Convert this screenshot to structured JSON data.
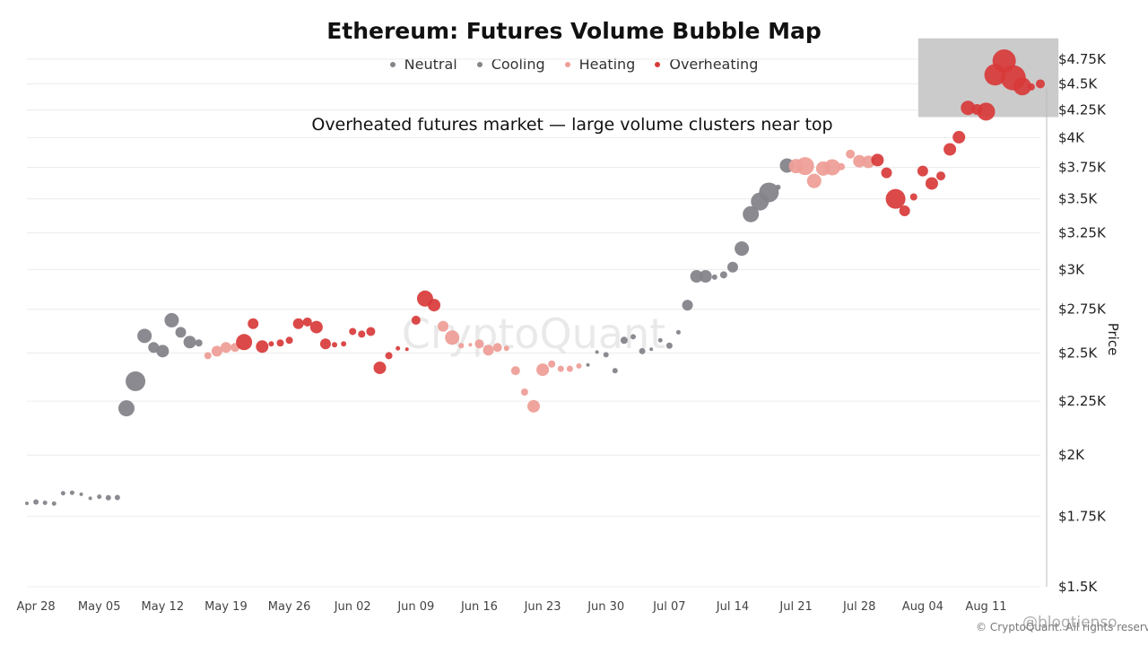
{
  "chart_data": {
    "type": "scatter",
    "title": "Ethereum: Futures Volume Bubble Map",
    "annotation": "Overheated futures market — large volume clusters near top",
    "ylabel": "Price",
    "y_scale": "log",
    "ylim": [
      1500,
      4900
    ],
    "y_ticks": [
      {
        "value": 1500,
        "label": "$1.5K"
      },
      {
        "value": 1750,
        "label": "$1.75K"
      },
      {
        "value": 2000,
        "label": "$2K"
      },
      {
        "value": 2250,
        "label": "$2.25K"
      },
      {
        "value": 2500,
        "label": "$2.5K"
      },
      {
        "value": 2750,
        "label": "$2.75K"
      },
      {
        "value": 3000,
        "label": "$3K"
      },
      {
        "value": 3250,
        "label": "$3.25K"
      },
      {
        "value": 3500,
        "label": "$3.5K"
      },
      {
        "value": 3750,
        "label": "$3.75K"
      },
      {
        "value": 4000,
        "label": "$4K"
      },
      {
        "value": 4250,
        "label": "$4.25K"
      },
      {
        "value": 4500,
        "label": "$4.5K"
      },
      {
        "value": 4750,
        "label": "$4.75K"
      }
    ],
    "xlim": [
      "2025-04-27",
      "2025-08-17"
    ],
    "x_ticks": [
      {
        "value": "2025-04-28",
        "label": "Apr 28"
      },
      {
        "value": "2025-05-05",
        "label": "May 05"
      },
      {
        "value": "2025-05-12",
        "label": "May 12"
      },
      {
        "value": "2025-05-19",
        "label": "May 19"
      },
      {
        "value": "2025-05-26",
        "label": "May 26"
      },
      {
        "value": "2025-06-02",
        "label": "Jun 02"
      },
      {
        "value": "2025-06-09",
        "label": "Jun 09"
      },
      {
        "value": "2025-06-16",
        "label": "Jun 16"
      },
      {
        "value": "2025-06-23",
        "label": "Jun 23"
      },
      {
        "value": "2025-06-30",
        "label": "Jun 30"
      },
      {
        "value": "2025-07-07",
        "label": "Jul 07"
      },
      {
        "value": "2025-07-14",
        "label": "Jul 14"
      },
      {
        "value": "2025-07-21",
        "label": "Jul 21"
      },
      {
        "value": "2025-07-28",
        "label": "Jul 28"
      },
      {
        "value": "2025-08-04",
        "label": "Aug 04"
      },
      {
        "value": "2025-08-11",
        "label": "Aug 11"
      }
    ],
    "grid": true,
    "legend_position": "top-center",
    "legend": [
      {
        "label": "Neutral",
        "color": "#86848b"
      },
      {
        "label": "Cooling",
        "color": "#86848b"
      },
      {
        "label": "Heating",
        "color": "#ee9f98"
      },
      {
        "label": "Overheating",
        "color": "#d83a3a"
      }
    ],
    "category_colors": {
      "N": "#86848b",
      "C": "#86848b",
      "H": "#ee9f98",
      "O": "#d83a3a"
    },
    "highlight_region": {
      "x": [
        "2025-08-04",
        "2025-08-19"
      ],
      "y": [
        4185,
        4970
      ]
    },
    "points": [
      {
        "date": "2025-04-27",
        "price": 1800,
        "cat": "N",
        "size": 2
      },
      {
        "date": "2025-04-28",
        "price": 1805,
        "cat": "N",
        "size": 3
      },
      {
        "date": "2025-04-29",
        "price": 1802,
        "cat": "N",
        "size": 2.5
      },
      {
        "date": "2025-04-30",
        "price": 1799,
        "cat": "N",
        "size": 2.5
      },
      {
        "date": "2025-05-01",
        "price": 1840,
        "cat": "N",
        "size": 2.5
      },
      {
        "date": "2025-05-02",
        "price": 1842,
        "cat": "N",
        "size": 2.5
      },
      {
        "date": "2025-05-03",
        "price": 1836,
        "cat": "N",
        "size": 2
      },
      {
        "date": "2025-05-04",
        "price": 1820,
        "cat": "N",
        "size": 2
      },
      {
        "date": "2025-05-05",
        "price": 1826,
        "cat": "N",
        "size": 2.5
      },
      {
        "date": "2025-05-06",
        "price": 1822,
        "cat": "N",
        "size": 3
      },
      {
        "date": "2025-05-07",
        "price": 1823,
        "cat": "N",
        "size": 3
      },
      {
        "date": "2025-05-08",
        "price": 2215,
        "cat": "C",
        "size": 9
      },
      {
        "date": "2025-05-09",
        "price": 2350,
        "cat": "C",
        "size": 11
      },
      {
        "date": "2025-05-10",
        "price": 2595,
        "cat": "C",
        "size": 8
      },
      {
        "date": "2025-05-11",
        "price": 2530,
        "cat": "C",
        "size": 6
      },
      {
        "date": "2025-05-12",
        "price": 2510,
        "cat": "C",
        "size": 7
      },
      {
        "date": "2025-05-13",
        "price": 2685,
        "cat": "C",
        "size": 8
      },
      {
        "date": "2025-05-14",
        "price": 2615,
        "cat": "C",
        "size": 6
      },
      {
        "date": "2025-05-15",
        "price": 2560,
        "cat": "C",
        "size": 7
      },
      {
        "date": "2025-05-16",
        "price": 2555,
        "cat": "C",
        "size": 4
      },
      {
        "date": "2025-05-17",
        "price": 2485,
        "cat": "H",
        "size": 4
      },
      {
        "date": "2025-05-18",
        "price": 2510,
        "cat": "H",
        "size": 6
      },
      {
        "date": "2025-05-19",
        "price": 2530,
        "cat": "H",
        "size": 6
      },
      {
        "date": "2025-05-20",
        "price": 2530,
        "cat": "H",
        "size": 5
      },
      {
        "date": "2025-05-21",
        "price": 2560,
        "cat": "O",
        "size": 9
      },
      {
        "date": "2025-05-22",
        "price": 2665,
        "cat": "O",
        "size": 6
      },
      {
        "date": "2025-05-23",
        "price": 2535,
        "cat": "O",
        "size": 7
      },
      {
        "date": "2025-05-24",
        "price": 2550,
        "cat": "O",
        "size": 3
      },
      {
        "date": "2025-05-25",
        "price": 2555,
        "cat": "O",
        "size": 4
      },
      {
        "date": "2025-05-26",
        "price": 2570,
        "cat": "O",
        "size": 4
      },
      {
        "date": "2025-05-27",
        "price": 2665,
        "cat": "O",
        "size": 6
      },
      {
        "date": "2025-05-28",
        "price": 2675,
        "cat": "O",
        "size": 5
      },
      {
        "date": "2025-05-29",
        "price": 2645,
        "cat": "O",
        "size": 7
      },
      {
        "date": "2025-05-30",
        "price": 2550,
        "cat": "O",
        "size": 6
      },
      {
        "date": "2025-05-31",
        "price": 2545,
        "cat": "O",
        "size": 3
      },
      {
        "date": "2025-06-01",
        "price": 2550,
        "cat": "O",
        "size": 3
      },
      {
        "date": "2025-06-02",
        "price": 2620,
        "cat": "O",
        "size": 4
      },
      {
        "date": "2025-06-03",
        "price": 2605,
        "cat": "O",
        "size": 4
      },
      {
        "date": "2025-06-04",
        "price": 2620,
        "cat": "O",
        "size": 5
      },
      {
        "date": "2025-06-05",
        "price": 2420,
        "cat": "O",
        "size": 7
      },
      {
        "date": "2025-06-06",
        "price": 2485,
        "cat": "O",
        "size": 4
      },
      {
        "date": "2025-06-07",
        "price": 2525,
        "cat": "O",
        "size": 2.5
      },
      {
        "date": "2025-06-08",
        "price": 2520,
        "cat": "O",
        "size": 2
      },
      {
        "date": "2025-06-09",
        "price": 2685,
        "cat": "O",
        "size": 5
      },
      {
        "date": "2025-06-10",
        "price": 2815,
        "cat": "O",
        "size": 9
      },
      {
        "date": "2025-06-11",
        "price": 2775,
        "cat": "O",
        "size": 7
      },
      {
        "date": "2025-06-12",
        "price": 2650,
        "cat": "H",
        "size": 6
      },
      {
        "date": "2025-06-13",
        "price": 2585,
        "cat": "H",
        "size": 8
      },
      {
        "date": "2025-06-14",
        "price": 2540,
        "cat": "H",
        "size": 3
      },
      {
        "date": "2025-06-15",
        "price": 2545,
        "cat": "H",
        "size": 2
      },
      {
        "date": "2025-06-16",
        "price": 2550,
        "cat": "H",
        "size": 5
      },
      {
        "date": "2025-06-17",
        "price": 2515,
        "cat": "H",
        "size": 6
      },
      {
        "date": "2025-06-18",
        "price": 2530,
        "cat": "H",
        "size": 5
      },
      {
        "date": "2025-06-19",
        "price": 2525,
        "cat": "H",
        "size": 3
      },
      {
        "date": "2025-06-20",
        "price": 2405,
        "cat": "H",
        "size": 5
      },
      {
        "date": "2025-06-21",
        "price": 2295,
        "cat": "H",
        "size": 4
      },
      {
        "date": "2025-06-22",
        "price": 2225,
        "cat": "H",
        "size": 7
      },
      {
        "date": "2025-06-23",
        "price": 2410,
        "cat": "H",
        "size": 7
      },
      {
        "date": "2025-06-24",
        "price": 2440,
        "cat": "H",
        "size": 4
      },
      {
        "date": "2025-06-25",
        "price": 2415,
        "cat": "H",
        "size": 3.5
      },
      {
        "date": "2025-06-26",
        "price": 2415,
        "cat": "H",
        "size": 3.5
      },
      {
        "date": "2025-06-27",
        "price": 2430,
        "cat": "H",
        "size": 3
      },
      {
        "date": "2025-06-28",
        "price": 2435,
        "cat": "N",
        "size": 2
      },
      {
        "date": "2025-06-29",
        "price": 2505,
        "cat": "N",
        "size": 2
      },
      {
        "date": "2025-06-30",
        "price": 2490,
        "cat": "N",
        "size": 3
      },
      {
        "date": "2025-07-01",
        "price": 2405,
        "cat": "N",
        "size": 3
      },
      {
        "date": "2025-07-02",
        "price": 2570,
        "cat": "N",
        "size": 4
      },
      {
        "date": "2025-07-03",
        "price": 2590,
        "cat": "N",
        "size": 3
      },
      {
        "date": "2025-07-04",
        "price": 2510,
        "cat": "N",
        "size": 3.5
      },
      {
        "date": "2025-07-05",
        "price": 2520,
        "cat": "N",
        "size": 2
      },
      {
        "date": "2025-07-06",
        "price": 2570,
        "cat": "N",
        "size": 2.5
      },
      {
        "date": "2025-07-07",
        "price": 2540,
        "cat": "N",
        "size": 3.5
      },
      {
        "date": "2025-07-08",
        "price": 2615,
        "cat": "N",
        "size": 2.5
      },
      {
        "date": "2025-07-09",
        "price": 2775,
        "cat": "C",
        "size": 6
      },
      {
        "date": "2025-07-10",
        "price": 2955,
        "cat": "C",
        "size": 7
      },
      {
        "date": "2025-07-11",
        "price": 2955,
        "cat": "C",
        "size": 7
      },
      {
        "date": "2025-07-12",
        "price": 2950,
        "cat": "C",
        "size": 3
      },
      {
        "date": "2025-07-13",
        "price": 2965,
        "cat": "C",
        "size": 4
      },
      {
        "date": "2025-07-14",
        "price": 3015,
        "cat": "C",
        "size": 6
      },
      {
        "date": "2025-07-15",
        "price": 3140,
        "cat": "C",
        "size": 8
      },
      {
        "date": "2025-07-16",
        "price": 3385,
        "cat": "C",
        "size": 9
      },
      {
        "date": "2025-07-17",
        "price": 3480,
        "cat": "C",
        "size": 10
      },
      {
        "date": "2025-07-18",
        "price": 3550,
        "cat": "C",
        "size": 11
      },
      {
        "date": "2025-07-19",
        "price": 3590,
        "cat": "C",
        "size": 3
      },
      {
        "date": "2025-07-20",
        "price": 3765,
        "cat": "C",
        "size": 8
      },
      {
        "date": "2025-07-21",
        "price": 3760,
        "cat": "H",
        "size": 8
      },
      {
        "date": "2025-07-22",
        "price": 3760,
        "cat": "H",
        "size": 10
      },
      {
        "date": "2025-07-23",
        "price": 3640,
        "cat": "H",
        "size": 8
      },
      {
        "date": "2025-07-24",
        "price": 3740,
        "cat": "H",
        "size": 8
      },
      {
        "date": "2025-07-25",
        "price": 3750,
        "cat": "H",
        "size": 9
      },
      {
        "date": "2025-07-26",
        "price": 3755,
        "cat": "H",
        "size": 4
      },
      {
        "date": "2025-07-27",
        "price": 3860,
        "cat": "H",
        "size": 5
      },
      {
        "date": "2025-07-28",
        "price": 3800,
        "cat": "H",
        "size": 7
      },
      {
        "date": "2025-07-29",
        "price": 3795,
        "cat": "H",
        "size": 7
      },
      {
        "date": "2025-07-30",
        "price": 3810,
        "cat": "O",
        "size": 7
      },
      {
        "date": "2025-07-31",
        "price": 3705,
        "cat": "O",
        "size": 6
      },
      {
        "date": "2025-08-01",
        "price": 3500,
        "cat": "O",
        "size": 11
      },
      {
        "date": "2025-08-02",
        "price": 3410,
        "cat": "O",
        "size": 6
      },
      {
        "date": "2025-08-03",
        "price": 3515,
        "cat": "O",
        "size": 4
      },
      {
        "date": "2025-08-04",
        "price": 3720,
        "cat": "O",
        "size": 6
      },
      {
        "date": "2025-08-05",
        "price": 3620,
        "cat": "O",
        "size": 7
      },
      {
        "date": "2025-08-06",
        "price": 3680,
        "cat": "O",
        "size": 5
      },
      {
        "date": "2025-08-07",
        "price": 3900,
        "cat": "O",
        "size": 7
      },
      {
        "date": "2025-08-08",
        "price": 4005,
        "cat": "O",
        "size": 7
      },
      {
        "date": "2025-08-09",
        "price": 4270,
        "cat": "O",
        "size": 8
      },
      {
        "date": "2025-08-10",
        "price": 4255,
        "cat": "O",
        "size": 6
      },
      {
        "date": "2025-08-11",
        "price": 4235,
        "cat": "O",
        "size": 10
      },
      {
        "date": "2025-08-12",
        "price": 4590,
        "cat": "O",
        "size": 12
      },
      {
        "date": "2025-08-13",
        "price": 4730,
        "cat": "O",
        "size": 13
      },
      {
        "date": "2025-08-14",
        "price": 4560,
        "cat": "O",
        "size": 14
      },
      {
        "date": "2025-08-15",
        "price": 4475,
        "cat": "O",
        "size": 10
      },
      {
        "date": "2025-08-16",
        "price": 4470,
        "cat": "O",
        "size": 4
      },
      {
        "date": "2025-08-17",
        "price": 4500,
        "cat": "O",
        "size": 5
      }
    ]
  },
  "watermark": "CryptoQuant",
  "footer": {
    "copyright": "© CryptoQuant. All rights reserved.",
    "handle": "@blogtienso"
  }
}
